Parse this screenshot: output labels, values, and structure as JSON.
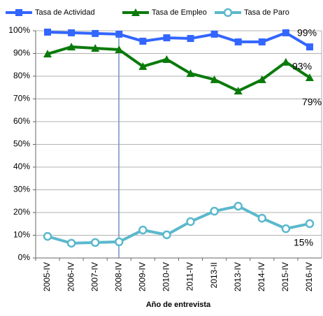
{
  "chart_data": {
    "type": "line",
    "x_label": "Año de entrevista",
    "categories": [
      "2005-IV",
      "2006-IV",
      "2007-IV",
      "2008-IV",
      "2009-IV",
      "2010-IV",
      "2011-IV",
      "2013-II",
      "2013-IV",
      "2014-IV",
      "2015-IV",
      "2016-IV"
    ],
    "series": [
      {
        "name": "Tasa de Actividad",
        "color": "#3366ff",
        "marker": "square",
        "values": [
          99.4,
          99.1,
          98.8,
          98.5,
          95.4,
          96.9,
          96.6,
          98.5,
          95.1,
          95.1,
          99.1,
          92.9
        ]
      },
      {
        "name": "Tasa de Empleo",
        "color": "#0a7a0a",
        "marker": "triangle",
        "values": [
          89.8,
          92.9,
          92.3,
          91.7,
          84.3,
          87.4,
          81.2,
          78.5,
          73.5,
          78.5,
          86.2,
          79.4
        ]
      },
      {
        "name": "Tasa de Paro",
        "color": "#5bb8cc",
        "marker": "circle",
        "values": [
          9.5,
          6.5,
          6.8,
          7.1,
          12.3,
          10.2,
          16.0,
          20.6,
          22.8,
          17.5,
          12.9,
          15.1
        ]
      }
    ],
    "annotations": [
      "99%",
      "93%",
      "79%",
      "15%"
    ],
    "ylim": [
      0,
      100
    ],
    "yticks": [
      {
        "value": 0,
        "label": "0%"
      },
      {
        "value": 10,
        "label": "10%"
      },
      {
        "value": 20,
        "label": "20%"
      },
      {
        "value": 30,
        "label": "30%"
      },
      {
        "value": 40,
        "label": "40%"
      },
      {
        "value": 50,
        "label": "50%"
      },
      {
        "value": 60,
        "label": "60%"
      },
      {
        "value": 70,
        "label": "70%"
      },
      {
        "value": 80,
        "label": "80%"
      },
      {
        "value": 90,
        "label": "90%"
      },
      {
        "value": 100,
        "label": "100%"
      }
    ],
    "grid": true,
    "legend": "top"
  }
}
